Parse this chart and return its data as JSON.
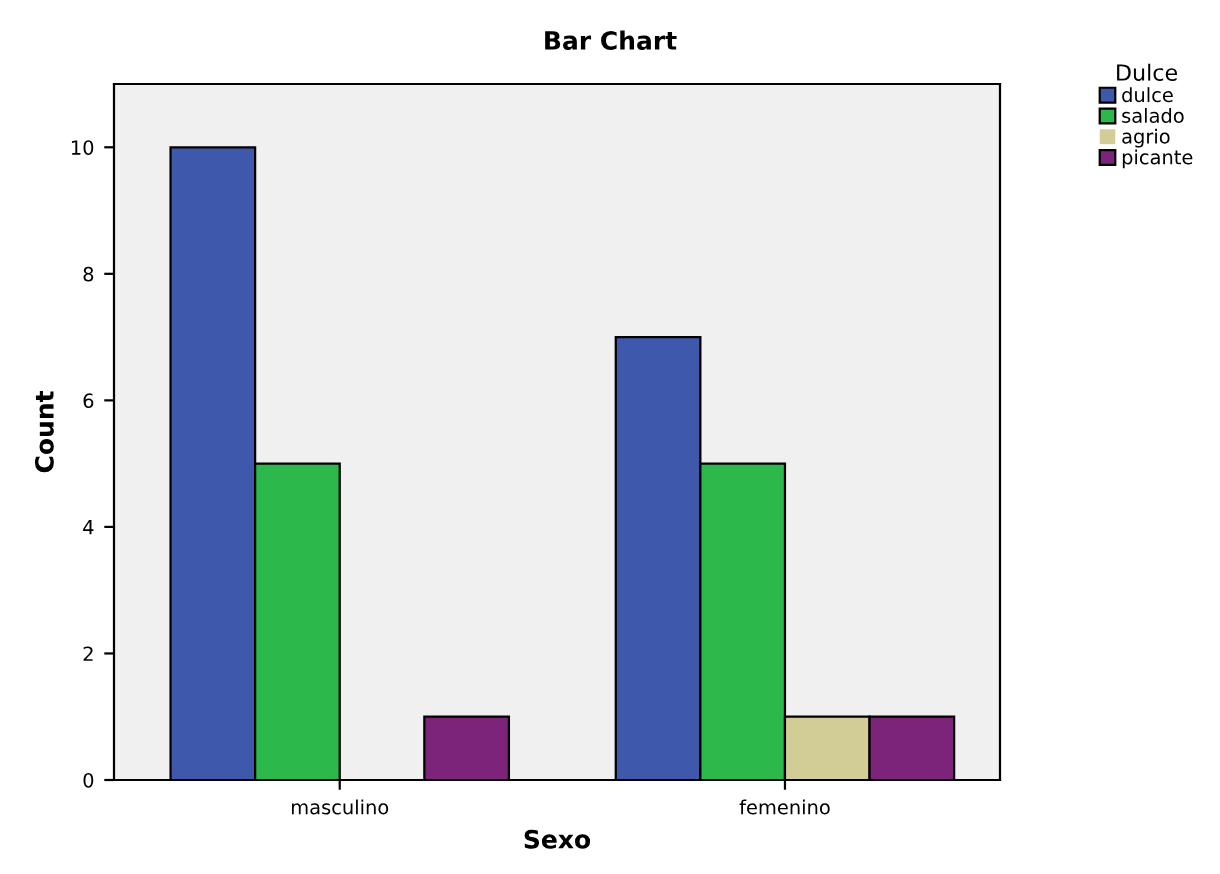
{
  "chart_data": {
    "type": "bar",
    "title": "Bar Chart",
    "xlabel": "Sexo",
    "ylabel": "Count",
    "legend_title": "Dulce",
    "categories": [
      "masculino",
      "femenino"
    ],
    "series": [
      {
        "name": "dulce",
        "color": "#3e58ac",
        "values": [
          10,
          7
        ]
      },
      {
        "name": "salado",
        "color": "#2db84b",
        "values": [
          5,
          5
        ]
      },
      {
        "name": "agrio",
        "color": "#d2cd96",
        "values": [
          0,
          1
        ]
      },
      {
        "name": "picante",
        "color": "#7b2479",
        "values": [
          1,
          1
        ]
      }
    ],
    "ylim": [
      0,
      11
    ],
    "yticks": [
      0,
      2,
      4,
      6,
      8,
      10
    ],
    "grid": false,
    "legend": "top right"
  }
}
